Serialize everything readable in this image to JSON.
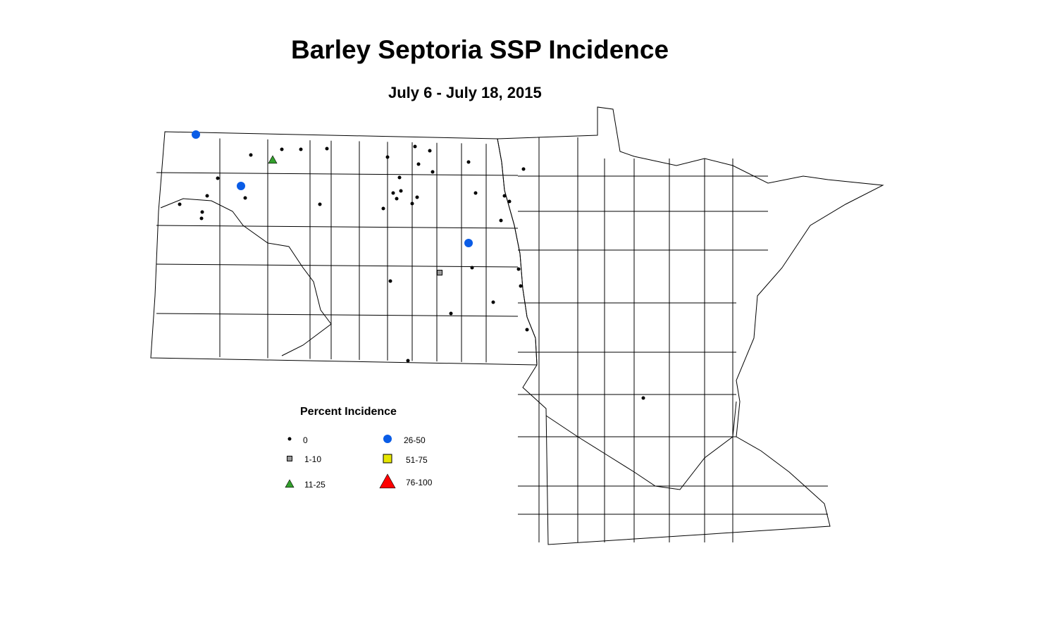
{
  "title": "Barley Septoria SSP Incidence",
  "subtitle": "July 6 - July 18, 2015",
  "legend": {
    "title": "Percent Incidence",
    "classes": [
      {
        "label": "0",
        "symbol": "dot",
        "color": "#000000"
      },
      {
        "label": "1-10",
        "symbol": "square",
        "color": "#999999"
      },
      {
        "label": "11-25",
        "symbol": "triangle",
        "color": "#33a02c"
      },
      {
        "label": "26-50",
        "symbol": "circle",
        "color": "#0a5ce6"
      },
      {
        "label": "51-75",
        "symbol": "square",
        "color": "#e6e600"
      },
      {
        "label": "76-100",
        "symbol": "triangle",
        "color": "#ff0000"
      }
    ]
  }
}
